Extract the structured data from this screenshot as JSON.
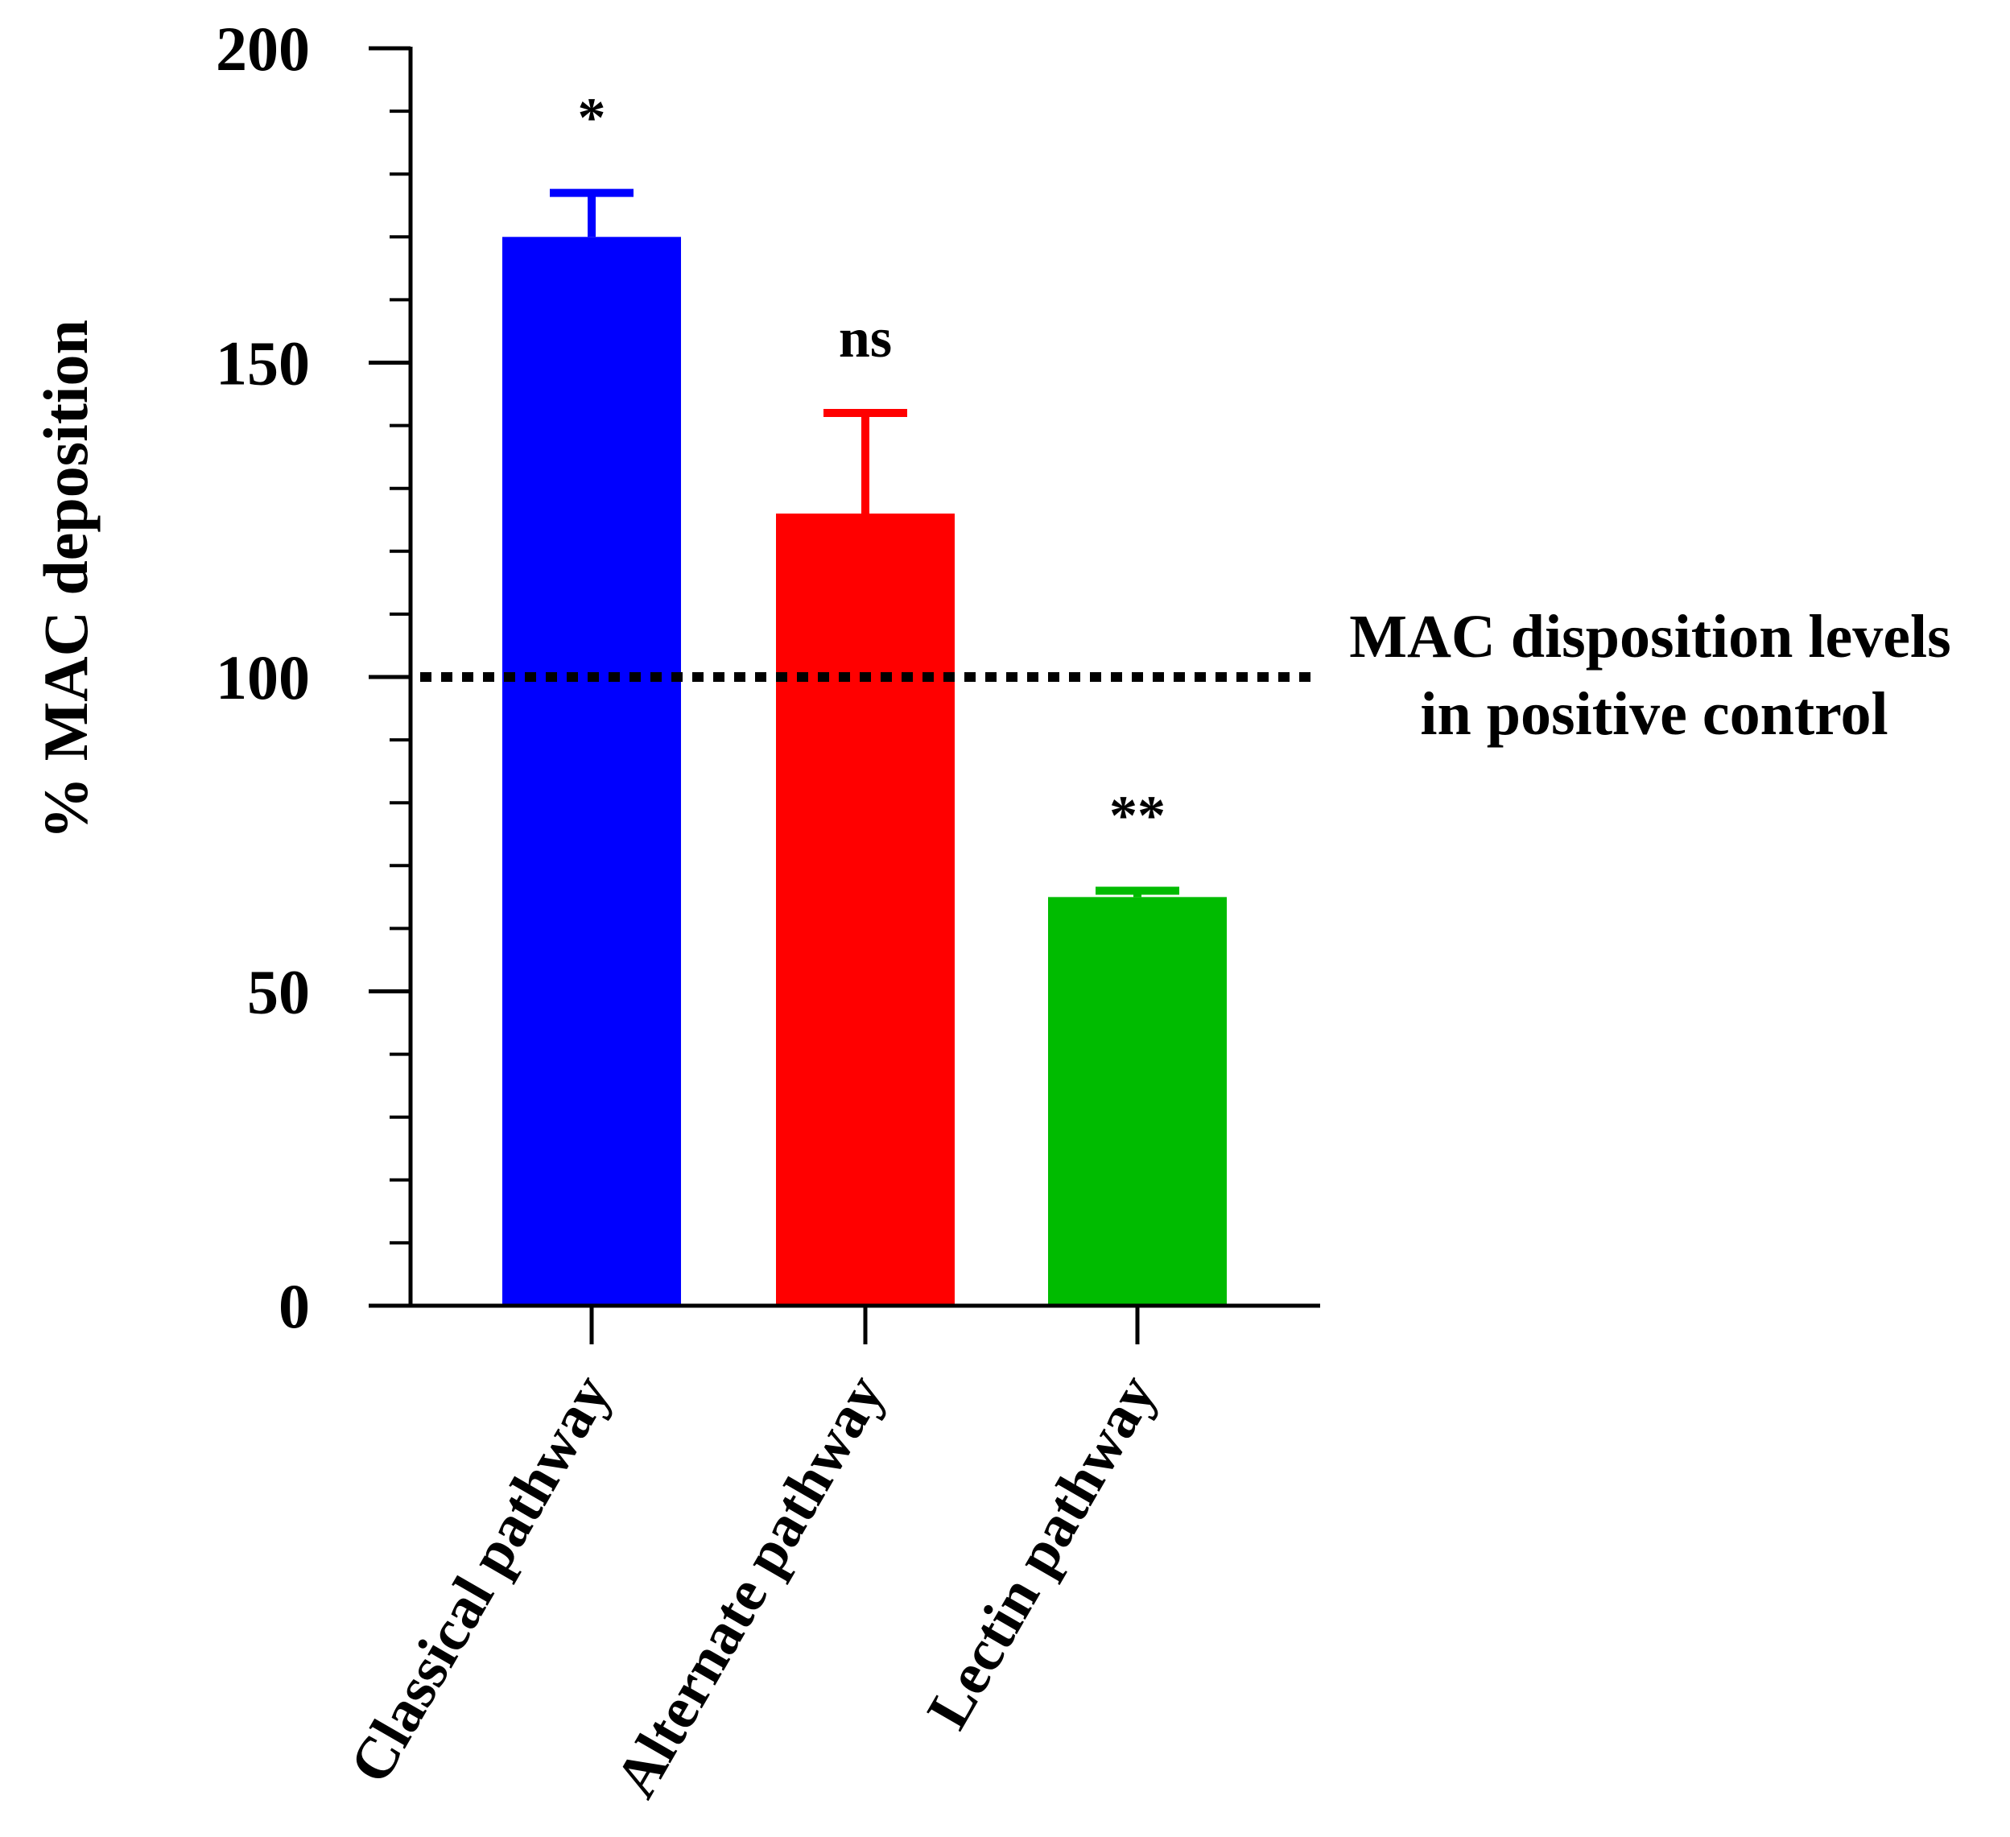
{
  "chart_data": {
    "type": "bar",
    "title": "",
    "xlabel": "",
    "ylabel": "% MAC deposition",
    "ylim": [
      0,
      200
    ],
    "y_ticks": [
      0,
      50,
      100,
      150,
      200
    ],
    "y_minor_step": 10,
    "grid": false,
    "legend": "none",
    "categories": [
      "Classical pathway",
      "Alternate pathway",
      "Lectin pathway"
    ],
    "values": [
      170,
      126,
      65
    ],
    "error_upper": [
      177,
      142,
      66
    ],
    "bar_colors": [
      "#0000ff",
      "#ff0000",
      "#00bb00"
    ],
    "significance": [
      "*",
      "ns",
      "**"
    ],
    "reference_line": {
      "value": 100,
      "style": "dotted",
      "label_lines": [
        "MAC disposition levels",
        "in positive control"
      ]
    }
  }
}
